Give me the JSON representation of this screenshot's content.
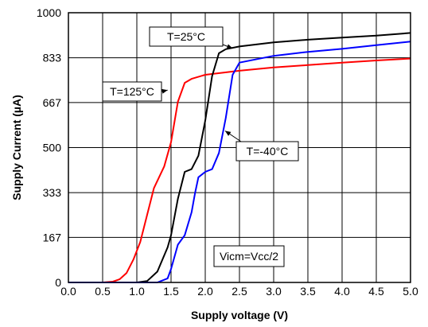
{
  "chart_data": {
    "type": "line",
    "title": "",
    "xlabel": "Supply voltage (V)",
    "ylabel": "Supply Current (µA)",
    "xlim": [
      0,
      5
    ],
    "ylim": [
      0,
      1000
    ],
    "x_ticks": [
      0,
      0.5,
      1,
      1.5,
      2,
      2.5,
      3,
      3.5,
      4,
      4.5,
      5
    ],
    "x_tick_labels": [
      "0.0",
      "0.5",
      "1.0",
      "1.5",
      "2.0",
      "2.5",
      "3.0",
      "3.5",
      "4.0",
      "4.5",
      "5.0"
    ],
    "y_ticks": [
      0,
      167,
      333,
      500,
      667,
      833,
      1000
    ],
    "y_tick_labels": [
      "0",
      "167",
      "333",
      "500",
      "667",
      "833",
      "1000"
    ],
    "grid": true,
    "series": [
      {
        "name": "T=125°C",
        "color": "#ff0000",
        "x": [
          0,
          0.5,
          0.65,
          0.75,
          0.85,
          0.95,
          1.05,
          1.15,
          1.25,
          1.4,
          1.5,
          1.6,
          1.7,
          1.8,
          2.0,
          2.5,
          3.0,
          3.5,
          4.0,
          4.5,
          5.0
        ],
        "y": [
          0,
          0,
          3,
          12,
          35,
          85,
          150,
          250,
          350,
          430,
          520,
          670,
          740,
          755,
          770,
          785,
          797,
          806,
          815,
          823,
          830
        ]
      },
      {
        "name": "T=25°C",
        "color": "#000000",
        "x": [
          0,
          1.0,
          1.15,
          1.3,
          1.45,
          1.5,
          1.6,
          1.7,
          1.8,
          1.9,
          2.0,
          2.1,
          2.2,
          2.3,
          2.5,
          3.0,
          3.5,
          4.0,
          4.5,
          5.0
        ],
        "y": [
          0,
          0,
          5,
          40,
          130,
          175,
          310,
          410,
          420,
          470,
          600,
          765,
          850,
          865,
          875,
          890,
          900,
          908,
          915,
          925
        ]
      },
      {
        "name": "T=-40°C",
        "color": "#0000ff",
        "x": [
          0,
          1.3,
          1.45,
          1.5,
          1.6,
          1.7,
          1.8,
          1.85,
          1.9,
          2.0,
          2.1,
          2.2,
          2.3,
          2.4,
          2.5,
          3.0,
          3.5,
          4.0,
          4.5,
          5.0
        ],
        "y": [
          0,
          0,
          15,
          50,
          140,
          175,
          260,
          330,
          390,
          410,
          420,
          480,
          610,
          770,
          815,
          840,
          855,
          866,
          880,
          893
        ]
      }
    ],
    "annotations": [
      {
        "text": "T=25°C",
        "series": "T=25°C",
        "target_x": 2.4,
        "target_y": 868
      },
      {
        "text": "T=125°C",
        "series": "T=125°C",
        "target_x": 1.45,
        "target_y": 713
      },
      {
        "text": "T=-40°C",
        "series": "T=-40°C",
        "target_x": 2.29,
        "target_y": 562
      },
      {
        "text": "Vicm=Vcc/2"
      }
    ]
  }
}
